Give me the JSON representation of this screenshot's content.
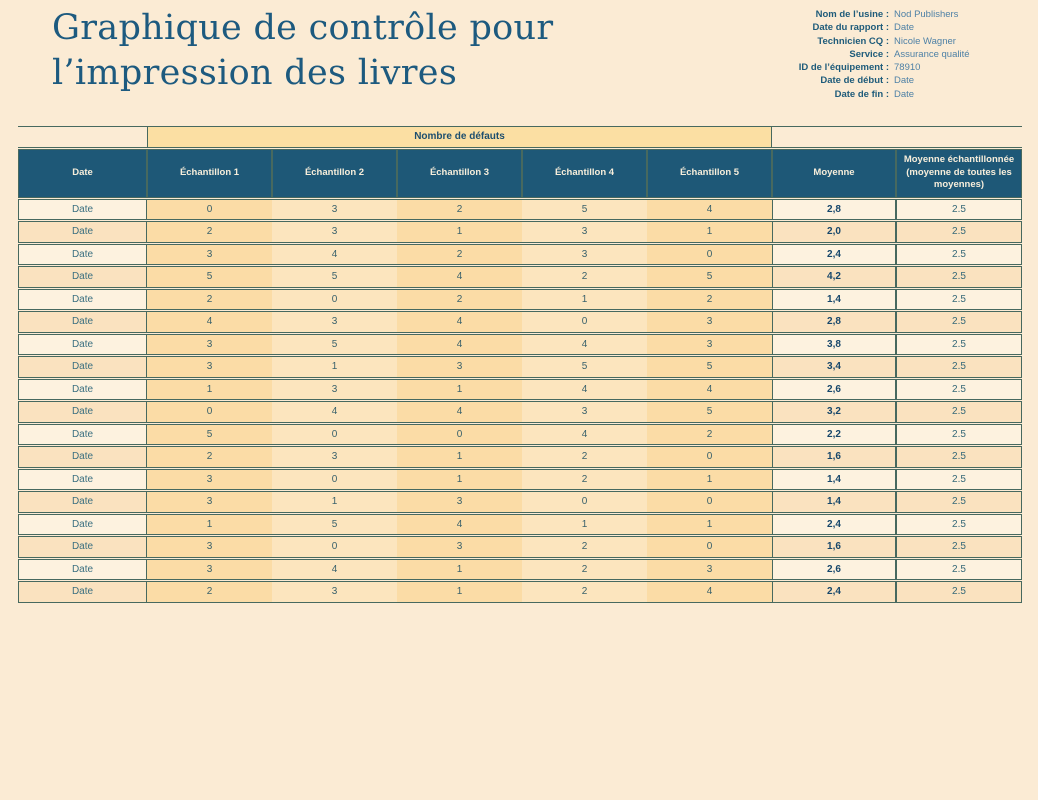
{
  "title": "Graphique de contrôle pour l’impression des livres",
  "metadata": {
    "fields": [
      {
        "label": "Nom de l’usine :",
        "value": "Nod Publishers"
      },
      {
        "label": "Date du rapport :",
        "value": "Date"
      },
      {
        "label": "Technicien CQ :",
        "value": "Nicole Wagner"
      },
      {
        "label": "Service :",
        "value": "Assurance qualité"
      },
      {
        "label": "ID de l’équipement :",
        "value": "78910"
      },
      {
        "label": "Date de début :",
        "value": "Date"
      },
      {
        "label": "Date de fin :",
        "value": "Date"
      }
    ]
  },
  "table": {
    "group_header": "Nombre de défauts",
    "columns": [
      "Date",
      "Échantillon 1",
      "Échantillon 2",
      "Échantillon 3",
      "Échantillon 4",
      "Échantillon 5",
      "Moyenne",
      "Moyenne échantillonnée (moyenne de toutes les moyennes)"
    ],
    "rows": [
      {
        "date": "Date",
        "samples": [
          0,
          3,
          2,
          5,
          4
        ],
        "mean": "2,8",
        "sampled_mean": "2.5"
      },
      {
        "date": "Date",
        "samples": [
          2,
          3,
          1,
          3,
          1
        ],
        "mean": "2,0",
        "sampled_mean": "2.5"
      },
      {
        "date": "Date",
        "samples": [
          3,
          4,
          2,
          3,
          0
        ],
        "mean": "2,4",
        "sampled_mean": "2.5"
      },
      {
        "date": "Date",
        "samples": [
          5,
          5,
          4,
          2,
          5
        ],
        "mean": "4,2",
        "sampled_mean": "2.5"
      },
      {
        "date": "Date",
        "samples": [
          2,
          0,
          2,
          1,
          2
        ],
        "mean": "1,4",
        "sampled_mean": "2.5"
      },
      {
        "date": "Date",
        "samples": [
          4,
          3,
          4,
          0,
          3
        ],
        "mean": "2,8",
        "sampled_mean": "2.5"
      },
      {
        "date": "Date",
        "samples": [
          3,
          5,
          4,
          4,
          3
        ],
        "mean": "3,8",
        "sampled_mean": "2.5"
      },
      {
        "date": "Date",
        "samples": [
          3,
          1,
          3,
          5,
          5
        ],
        "mean": "3,4",
        "sampled_mean": "2.5"
      },
      {
        "date": "Date",
        "samples": [
          1,
          3,
          1,
          4,
          4
        ],
        "mean": "2,6",
        "sampled_mean": "2.5"
      },
      {
        "date": "Date",
        "samples": [
          0,
          4,
          4,
          3,
          5
        ],
        "mean": "3,2",
        "sampled_mean": "2.5"
      },
      {
        "date": "Date",
        "samples": [
          5,
          0,
          0,
          4,
          2
        ],
        "mean": "2,2",
        "sampled_mean": "2.5"
      },
      {
        "date": "Date",
        "samples": [
          2,
          3,
          1,
          2,
          0
        ],
        "mean": "1,6",
        "sampled_mean": "2.5"
      },
      {
        "date": "Date",
        "samples": [
          3,
          0,
          1,
          2,
          1
        ],
        "mean": "1,4",
        "sampled_mean": "2.5"
      },
      {
        "date": "Date",
        "samples": [
          3,
          1,
          3,
          0,
          0
        ],
        "mean": "1,4",
        "sampled_mean": "2.5"
      },
      {
        "date": "Date",
        "samples": [
          1,
          5,
          4,
          1,
          1
        ],
        "mean": "2,4",
        "sampled_mean": "2.5"
      },
      {
        "date": "Date",
        "samples": [
          3,
          0,
          3,
          2,
          0
        ],
        "mean": "1,6",
        "sampled_mean": "2.5"
      },
      {
        "date": "Date",
        "samples": [
          3,
          4,
          1,
          2,
          3
        ],
        "mean": "2,6",
        "sampled_mean": "2.5"
      },
      {
        "date": "Date",
        "samples": [
          2,
          3,
          1,
          2,
          4
        ],
        "mean": "2,4",
        "sampled_mean": "2.5"
      }
    ]
  },
  "colors": {
    "background": "#fbebd4",
    "header_blue": "#1e5877",
    "band_fill": "#fbdfa3",
    "title_blue": "#1d5a7f",
    "border": "#47695f",
    "sample_col_dark": "#fbdca6",
    "sample_col_light": "#fce5be",
    "row_light": "#fdf2df",
    "row_dark": "#fae2bf"
  }
}
